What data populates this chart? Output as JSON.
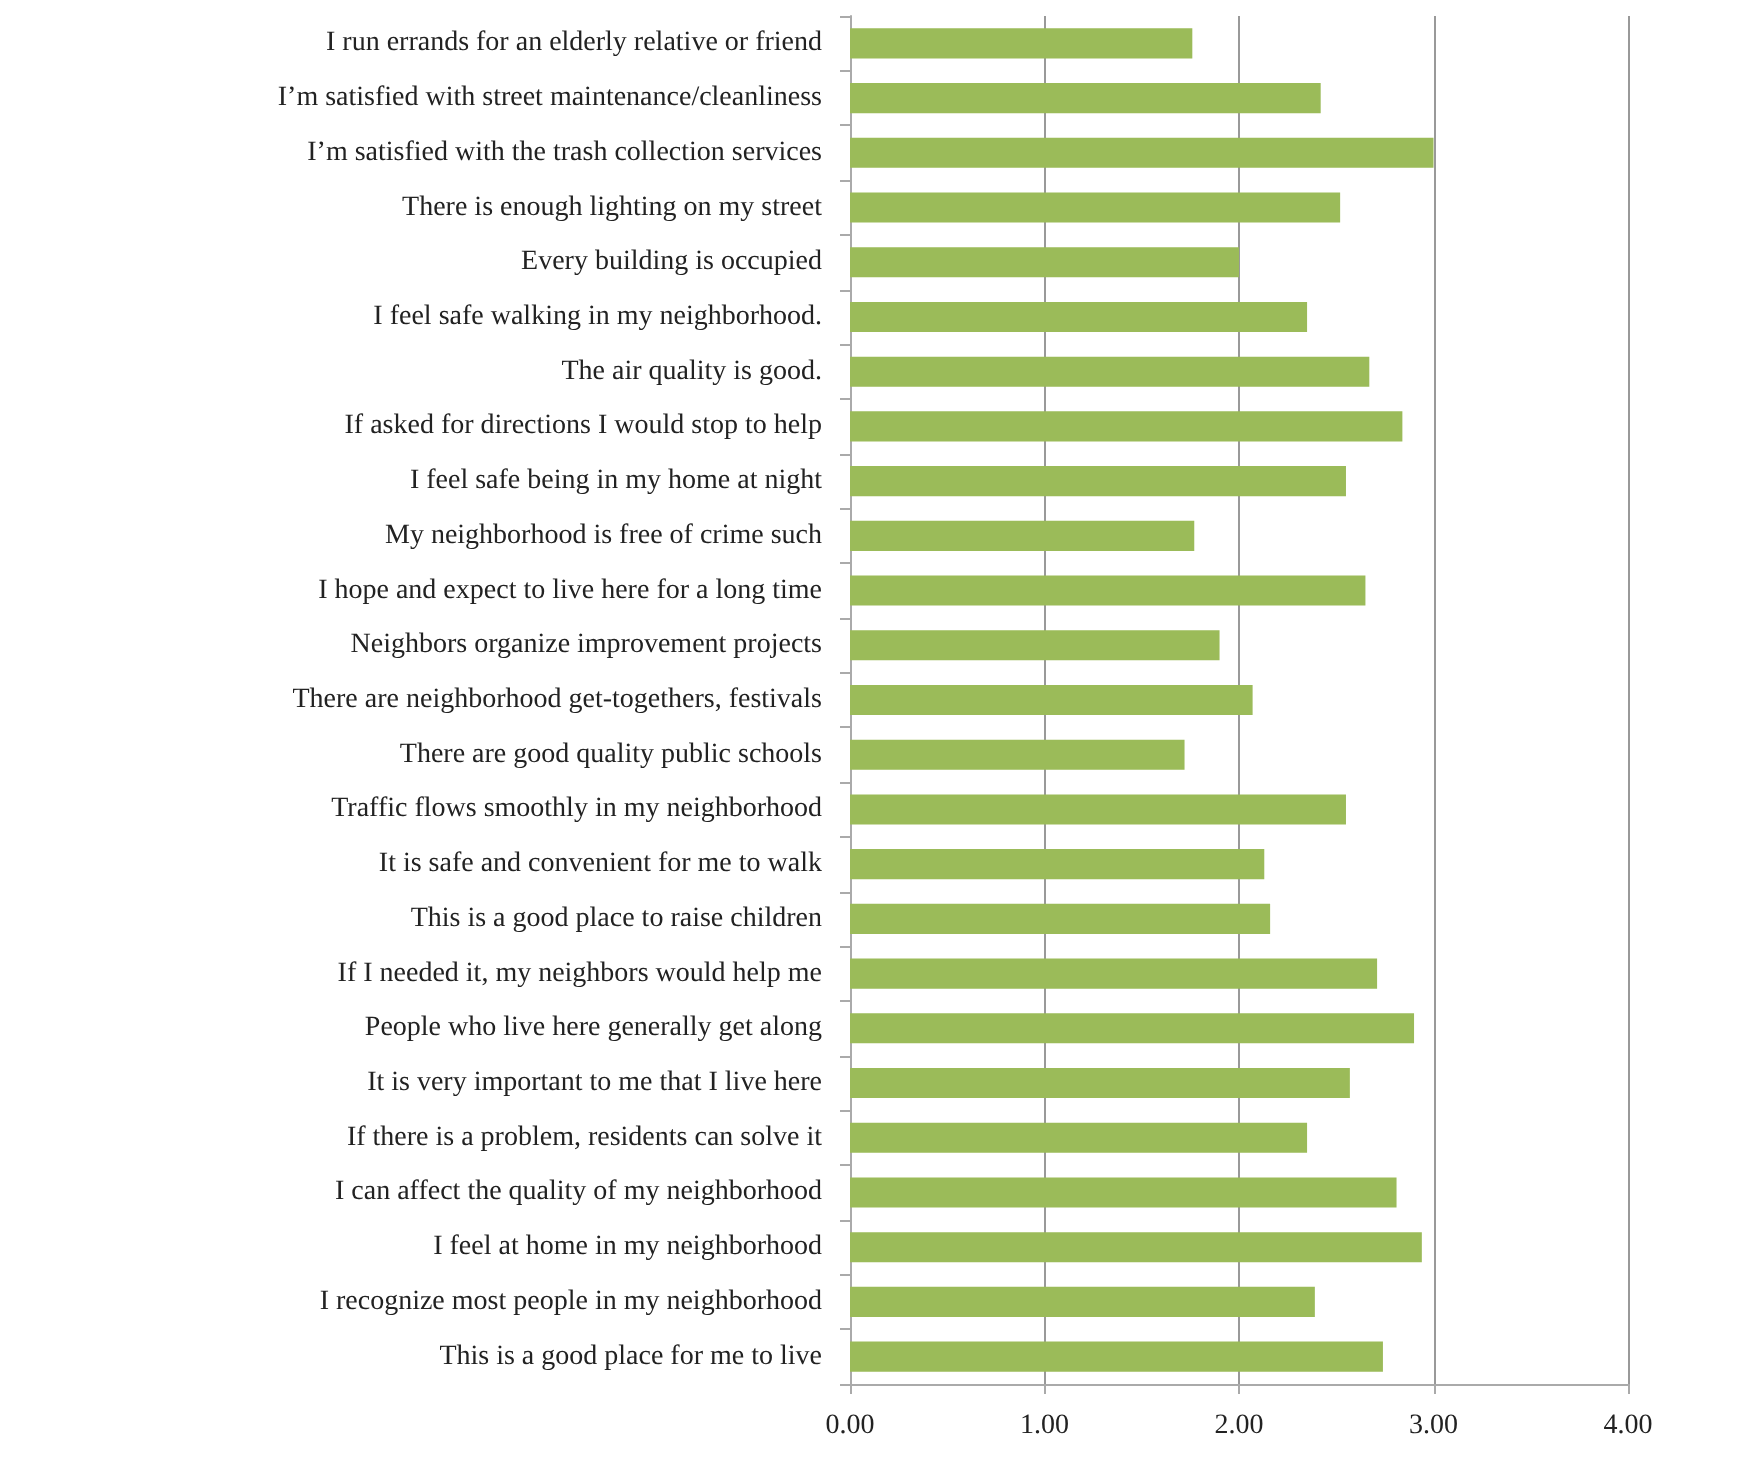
{
  "chart_data": {
    "type": "bar",
    "orientation": "horizontal",
    "categories": [
      "I run errands for an elderly relative or friend",
      "I’m satisfied with street maintenance/cleanliness",
      "I’m satisfied with the trash collection services",
      "There is enough lighting on my street",
      "Every building is occupied",
      "I feel safe walking in my neighborhood.",
      "The air quality is good.",
      "If asked for directions I would stop to help",
      "I feel safe being in my home at night",
      "My neighborhood is free of crime such",
      "I hope and expect to live here for a long time",
      "Neighbors organize improvement projects",
      "There are neighborhood get-togethers, festivals",
      "There are good quality public schools",
      "Traffic flows smoothly in my neighborhood",
      "It is safe and convenient for me to walk",
      "This is a good place to raise children",
      "If I needed it, my neighbors would help me",
      "People who live here generally get along",
      "It is very important to me that I live here",
      "If there is a problem, residents can solve it",
      "I can affect the quality of my neighborhood",
      "I feel at home in my neighborhood",
      "I recognize most people in my neighborhood",
      "This is a good place for me to live"
    ],
    "values": [
      1.76,
      2.42,
      3.0,
      2.52,
      2.0,
      2.35,
      2.67,
      2.84,
      2.55,
      1.77,
      2.65,
      1.9,
      2.07,
      1.72,
      2.55,
      2.13,
      2.16,
      2.71,
      2.9,
      2.57,
      2.35,
      2.81,
      2.94,
      2.39,
      2.74
    ],
    "color": "#9bbb59",
    "xlim": [
      0,
      4
    ],
    "xticks": [
      {
        "value": 0,
        "label": "0.00"
      },
      {
        "value": 1,
        "label": "1.00"
      },
      {
        "value": 2,
        "label": "2.00"
      },
      {
        "value": 3,
        "label": "3.00"
      },
      {
        "value": 4,
        "label": "4.00"
      }
    ],
    "grid": "x"
  }
}
